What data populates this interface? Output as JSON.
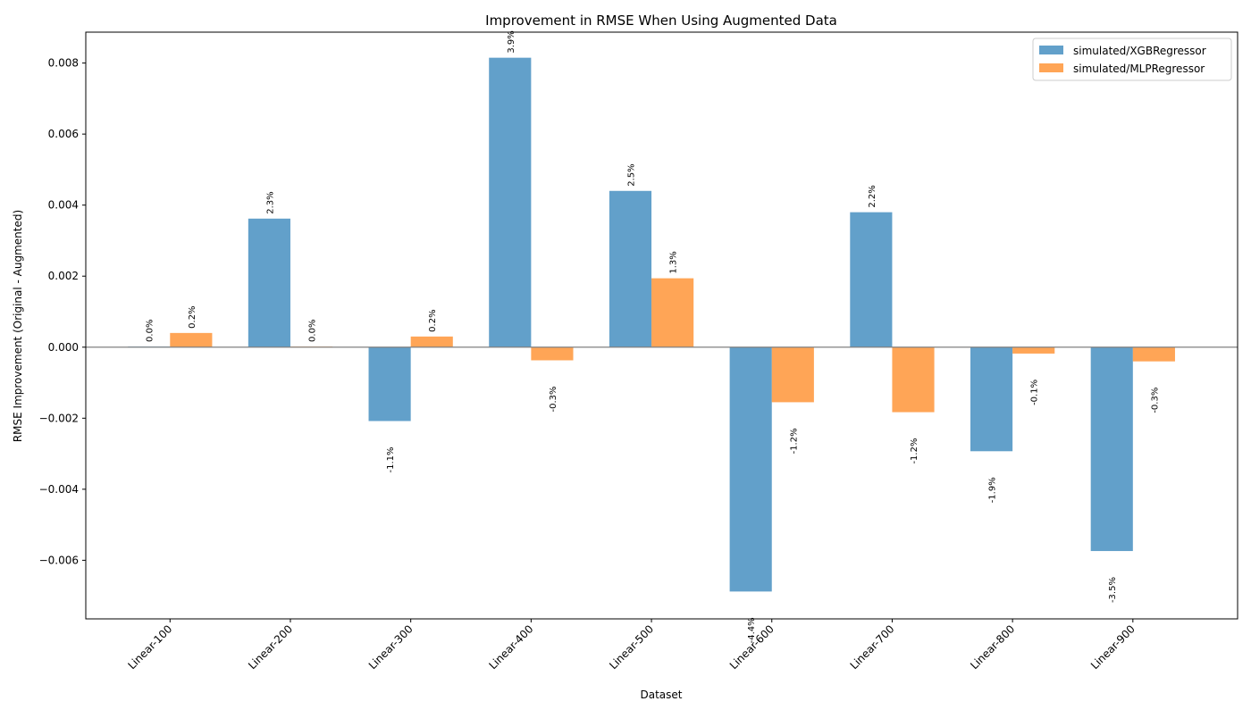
{
  "chart_data": {
    "type": "bar",
    "title": "Improvement in RMSE When Using Augmented Data",
    "xlabel": "Dataset",
    "ylabel": "RMSE Improvement (Original - Augmented)",
    "categories": [
      "Linear-100",
      "Linear-200",
      "Linear-300",
      "Linear-400",
      "Linear-500",
      "Linear-600",
      "Linear-700",
      "Linear-800",
      "Linear-900"
    ],
    "series": [
      {
        "name": "simulated/XGBRegressor",
        "color": "#1f77b4",
        "values": [
          2e-05,
          0.00362,
          -0.00208,
          0.00815,
          0.0044,
          -0.00688,
          0.0038,
          -0.00293,
          -0.00574
        ],
        "labels": [
          "0.0%",
          "2.3%",
          "-1.1%",
          "3.9%",
          "2.5%",
          "-4.4%",
          "2.2%",
          "-1.9%",
          "-3.5%"
        ]
      },
      {
        "name": "simulated/MLPRegressor",
        "color": "#ff7f0e",
        "values": [
          0.0004,
          2e-05,
          0.0003,
          -0.00037,
          0.00194,
          -0.00155,
          -0.00183,
          -0.00018,
          -0.0004
        ],
        "labels": [
          "0.2%",
          "0.0%",
          "0.2%",
          "-0.3%",
          "1.3%",
          "-1.2%",
          "-1.2%",
          "-0.1%",
          "-0.3%"
        ]
      }
    ],
    "ylim": [
      -0.00765,
      0.00887
    ],
    "yticks": [
      -0.006,
      -0.004,
      -0.002,
      0.0,
      0.002,
      0.004,
      0.006,
      0.008
    ],
    "ytick_labels": [
      "−0.006",
      "−0.004",
      "−0.002",
      "0.000",
      "0.002",
      "0.004",
      "0.006",
      "0.008"
    ],
    "zero_line": true,
    "grid": false,
    "legend_position": "upper right"
  }
}
